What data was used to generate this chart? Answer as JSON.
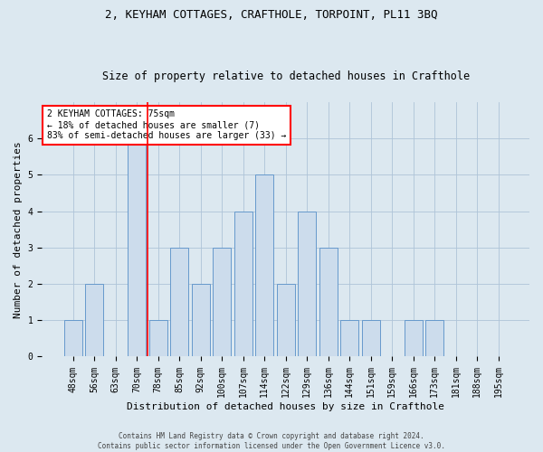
{
  "title": "2, KEYHAM COTTAGES, CRAFTHOLE, TORPOINT, PL11 3BQ",
  "subtitle": "Size of property relative to detached houses in Crafthole",
  "xlabel": "Distribution of detached houses by size in Crafthole",
  "ylabel": "Number of detached properties",
  "bar_labels": [
    "48sqm",
    "56sqm",
    "63sqm",
    "70sqm",
    "78sqm",
    "85sqm",
    "92sqm",
    "100sqm",
    "107sqm",
    "114sqm",
    "122sqm",
    "129sqm",
    "136sqm",
    "144sqm",
    "151sqm",
    "159sqm",
    "166sqm",
    "173sqm",
    "181sqm",
    "188sqm",
    "195sqm"
  ],
  "bar_values": [
    1,
    2,
    0,
    6,
    1,
    3,
    2,
    3,
    4,
    5,
    2,
    4,
    3,
    1,
    1,
    0,
    1,
    1,
    0,
    0,
    0
  ],
  "bar_color": "#ccdcec",
  "bar_edge_color": "#6699cc",
  "grid_color": "#aec4d8",
  "background_color": "#dce8f0",
  "marker_color": "red",
  "annotation_text": "2 KEYHAM COTTAGES: 75sqm\n← 18% of detached houses are smaller (7)\n83% of semi-detached houses are larger (33) →",
  "annotation_box_color": "white",
  "annotation_box_edge_color": "red",
  "ylim": [
    0,
    7
  ],
  "yticks": [
    0,
    1,
    2,
    3,
    4,
    5,
    6,
    7
  ],
  "footer_text": "Contains HM Land Registry data © Crown copyright and database right 2024.\nContains public sector information licensed under the Open Government Licence v3.0.",
  "title_fontsize": 9,
  "subtitle_fontsize": 8.5,
  "xlabel_fontsize": 8,
  "ylabel_fontsize": 8,
  "tick_fontsize": 7,
  "annotation_fontsize": 7,
  "footer_fontsize": 5.5
}
